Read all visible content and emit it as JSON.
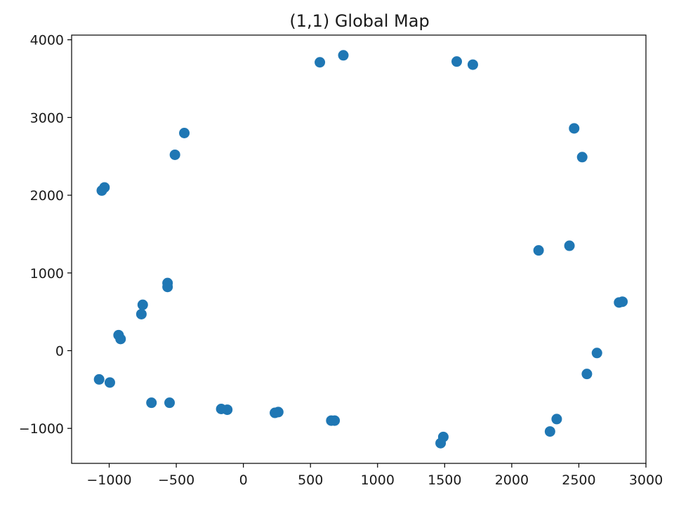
{
  "chart_data": {
    "type": "scatter",
    "title": "(1,1) Global Map",
    "xlabel": "",
    "ylabel": "",
    "xlim": [
      -1280,
      3000
    ],
    "ylim": [
      -1450,
      4060
    ],
    "x_ticks": [
      -1000,
      -500,
      0,
      500,
      1000,
      1500,
      2000,
      2500,
      3000
    ],
    "x_tick_labels": [
      "−1000",
      "−500",
      "0",
      "500",
      "1000",
      "1500",
      "2000",
      "2500",
      "3000"
    ],
    "y_ticks": [
      -1000,
      0,
      1000,
      2000,
      3000,
      4000
    ],
    "y_tick_labels": [
      "−1000",
      "0",
      "1000",
      "2000",
      "3000",
      "4000"
    ],
    "grid": false,
    "color": "#1f77b4",
    "points": [
      {
        "x": 570,
        "y": 3710
      },
      {
        "x": 745,
        "y": 3800
      },
      {
        "x": 1590,
        "y": 3720
      },
      {
        "x": 1710,
        "y": 3680
      },
      {
        "x": 2465,
        "y": 2860
      },
      {
        "x": 2525,
        "y": 2490
      },
      {
        "x": 2200,
        "y": 1290
      },
      {
        "x": 2430,
        "y": 1350
      },
      {
        "x": 2800,
        "y": 620
      },
      {
        "x": 2825,
        "y": 630
      },
      {
        "x": 2635,
        "y": -30
      },
      {
        "x": 2560,
        "y": -300
      },
      {
        "x": 2335,
        "y": -880
      },
      {
        "x": 2285,
        "y": -1040
      },
      {
        "x": 1490,
        "y": -1110
      },
      {
        "x": 1470,
        "y": -1190
      },
      {
        "x": 680,
        "y": -900
      },
      {
        "x": 655,
        "y": -900
      },
      {
        "x": 260,
        "y": -790
      },
      {
        "x": 235,
        "y": -800
      },
      {
        "x": -120,
        "y": -760
      },
      {
        "x": -165,
        "y": -750
      },
      {
        "x": -550,
        "y": -670
      },
      {
        "x": -685,
        "y": -670
      },
      {
        "x": -995,
        "y": -410
      },
      {
        "x": -1075,
        "y": -370
      },
      {
        "x": -930,
        "y": 200
      },
      {
        "x": -915,
        "y": 150
      },
      {
        "x": -750,
        "y": 590
      },
      {
        "x": -760,
        "y": 470
      },
      {
        "x": -565,
        "y": 870
      },
      {
        "x": -565,
        "y": 820
      },
      {
        "x": -440,
        "y": 2800
      },
      {
        "x": -510,
        "y": 2520
      },
      {
        "x": -1035,
        "y": 2100
      },
      {
        "x": -1055,
        "y": 2060
      }
    ]
  }
}
